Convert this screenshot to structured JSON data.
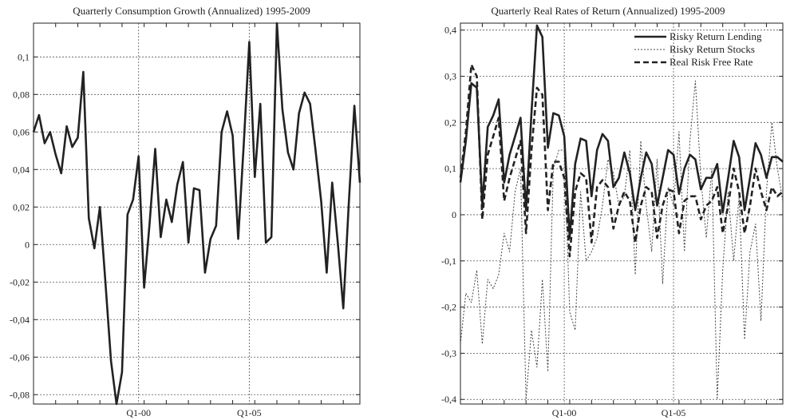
{
  "chart_data": [
    {
      "type": "line",
      "title": "Quarterly Consumption Growth (Annualized) 1995-2009",
      "xlabel": "",
      "ylabel": "",
      "x_ticks": [
        "Q1-00",
        "Q1-05"
      ],
      "x_tick_positions": [
        20,
        40
      ],
      "xlim": [
        1,
        60
      ],
      "ylim": [
        -0.085,
        0.118
      ],
      "y_ticks": [
        -0.08,
        -0.06,
        -0.04,
        -0.02,
        0,
        0.02,
        0.04,
        0.06,
        0.08,
        0.1
      ],
      "y_tick_labels": [
        "-0,08",
        "-0,06",
        "-0,04",
        "-0,02",
        "0",
        "0,02",
        "0,04",
        "0,06",
        "0,08",
        "0,1"
      ],
      "grid": true,
      "legend": "none",
      "series": [
        {
          "style": "solid",
          "color": "#222222",
          "values": [
            0.06,
            0.069,
            0.054,
            0.06,
            0.048,
            0.038,
            0.063,
            0.052,
            0.057,
            0.092,
            0.014,
            -0.002,
            0.02,
            -0.02,
            -0.062,
            -0.085,
            -0.068,
            0.016,
            0.024,
            0.047,
            -0.023,
            0.012,
            0.051,
            0.004,
            0.024,
            0.012,
            0.032,
            0.044,
            0.001,
            0.03,
            0.029,
            -0.015,
            0.003,
            0.01,
            0.06,
            0.071,
            0.058,
            0.003,
            0.053,
            0.108,
            0.036,
            0.075,
            0.001,
            0.004,
            0.118,
            0.072,
            0.049,
            0.04,
            0.07,
            0.081,
            0.075,
            0.05,
            0.023,
            -0.015,
            0.033,
            0.001,
            -0.034,
            0.022,
            0.074,
            0.033
          ]
        }
      ]
    },
    {
      "type": "line",
      "title": "Quarterly Real Rates of Return (Annualized) 1995-2009",
      "xlabel": "",
      "ylabel": "",
      "x_ticks": [
        "Q1-00",
        "Q1-05"
      ],
      "x_tick_positions": [
        20,
        40
      ],
      "xlim": [
        1,
        60
      ],
      "ylim": [
        -0.41,
        0.415
      ],
      "y_ticks": [
        -0.4,
        -0.3,
        -0.2,
        -0.1,
        0,
        0.1,
        0.2,
        0.3,
        0.4
      ],
      "y_tick_labels": [
        "-0,4",
        "-0,3",
        "-0,2",
        "-0,1",
        "0",
        "0,1",
        "0,2",
        "0,3",
        "0,4"
      ],
      "grid": true,
      "legend": "top-right",
      "series": [
        {
          "name": "Risky Return Lending",
          "style": "solid",
          "color": "#222222",
          "values": [
            0.07,
            0.16,
            0.285,
            0.275,
            0.02,
            0.19,
            0.215,
            0.25,
            0.07,
            0.13,
            0.17,
            0.21,
            0.01,
            0.22,
            0.41,
            0.385,
            0.145,
            0.22,
            0.215,
            0.17,
            -0.05,
            0.11,
            0.165,
            0.16,
            0.04,
            0.14,
            0.175,
            0.16,
            0.06,
            0.08,
            0.135,
            0.09,
            0.01,
            0.08,
            0.135,
            0.11,
            0.02,
            0.08,
            0.14,
            0.13,
            0.045,
            0.1,
            0.13,
            0.12,
            0.055,
            0.08,
            0.08,
            0.11,
            0.005,
            0.08,
            0.16,
            0.125,
            0.01,
            0.08,
            0.155,
            0.13,
            0.08,
            0.125,
            0.125,
            0.115
          ]
        },
        {
          "name": "Risky Return Stocks",
          "style": "dotted",
          "color": "#444444",
          "values": [
            -0.28,
            -0.17,
            -0.19,
            -0.12,
            -0.28,
            -0.14,
            -0.16,
            -0.13,
            -0.04,
            -0.08,
            0.05,
            0.1,
            -0.4,
            -0.25,
            -0.33,
            -0.14,
            -0.34,
            0.1,
            0.14,
            0.14,
            -0.21,
            -0.25,
            0.05,
            -0.1,
            -0.08,
            -0.05,
            0.02,
            0.12,
            0.09,
            0.02,
            0.04,
            0.14,
            -0.13,
            0.16,
            0.02,
            -0.08,
            0.12,
            -0.15,
            0.06,
            0.02,
            0.18,
            -0.08,
            0.16,
            0.29,
            0.08,
            -0.05,
            0.1,
            -0.4,
            -0.12,
            0.05,
            -0.1,
            0.04,
            -0.27,
            -0.08,
            -0.02,
            -0.23,
            0.05,
            0.2,
            0.1,
            0.03
          ]
        },
        {
          "name": "Real Risk Free Rate",
          "style": "dashed",
          "color": "#222222",
          "values": [
            0.08,
            0.18,
            0.325,
            0.3,
            -0.01,
            0.13,
            0.17,
            0.21,
            0.03,
            0.08,
            0.12,
            0.16,
            -0.04,
            0.14,
            0.275,
            0.26,
            0.01,
            0.115,
            0.115,
            0.08,
            -0.09,
            0.05,
            0.09,
            0.08,
            -0.06,
            0.06,
            0.075,
            0.06,
            -0.03,
            0.02,
            0.05,
            0.03,
            -0.06,
            0.02,
            0.06,
            0.05,
            -0.05,
            0.02,
            0.055,
            0.05,
            -0.04,
            0.03,
            0.04,
            0.04,
            -0.01,
            0.02,
            0.03,
            0.06,
            -0.04,
            0.02,
            0.1,
            0.05,
            -0.04,
            0.02,
            0.1,
            0.05,
            0.01,
            0.06,
            0.04,
            0.05
          ]
        }
      ]
    }
  ]
}
